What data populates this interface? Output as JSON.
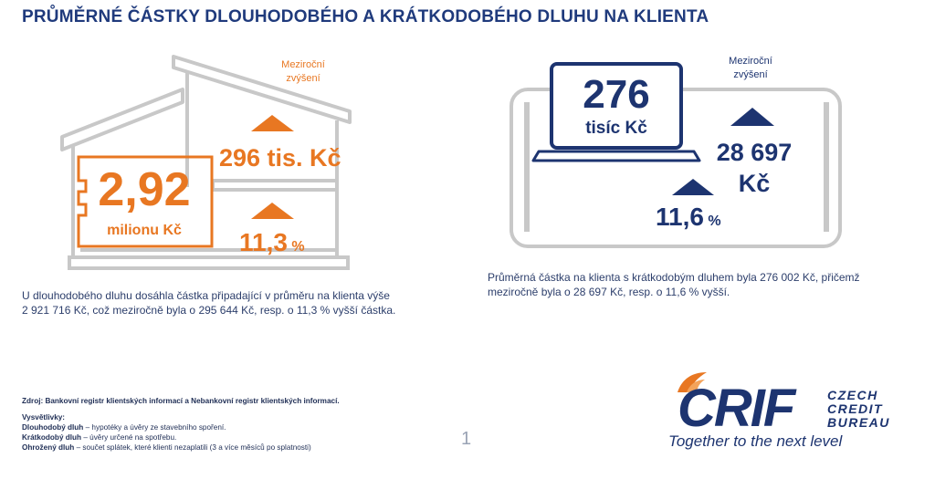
{
  "title": "PRŮMĚRNÉ ČÁSTKY DLOUHODOBÉHO A KRÁTKODOBÉHO DLUHU NA KLIENTA",
  "left": {
    "annual_label_line1": "Meziroční",
    "annual_label_line2": "zvýšení",
    "main_value": "2,92",
    "main_unit": "milionu Kč",
    "increase_value": "296 tis. Kč",
    "increase_pct_value": "11,3",
    "increase_pct_unit": "%",
    "text_line1": "U dlouhodobého dluhu dosáhla částka připadající v průměru na klienta výše",
    "text_line2": "2 921 716 Kč, což meziročně byla o 295 644 Kč, resp. o 11,3 % vyšší částka."
  },
  "right": {
    "annual_label_line1": "Meziroční",
    "annual_label_line2": "zvýšení",
    "main_value": "276",
    "main_unit": "tisíc Kč",
    "increase_value_line1": "28 697",
    "increase_value_line2": "Kč",
    "increase_pct_value": "11,6",
    "increase_pct_unit": "%",
    "text_line1": "Průměrná částka na klienta s krátkodobým dluhem byla 276 002 Kč, přičemž",
    "text_line2": "meziročně byla o 28 697 Kč, resp. o 11,6 % vyšší."
  },
  "footer": {
    "source": "Zdroj: Bankovní registr klientských informací a Nebankovní registr klientských informací.",
    "legend_title": "Vysvětlivky:",
    "def1_term": "Dlouhodobý dluh",
    "def1_text": " – hypotéky a úvěry ze stavebního spoření.",
    "def2_term": "Krátkodobý dluh",
    "def2_text": " – úvěry určené na spotřebu.",
    "def3_term": "Ohrožený dluh",
    "def3_text": " – součet splátek, které klienti nezaplatili (3 a více měsíců po splatnosti)",
    "page_number": "1"
  },
  "logo": {
    "brand": "CRIF",
    "line1": "CZECH",
    "line2": "CREDIT",
    "line3": "BUREAU",
    "tagline": "Together to the next level"
  },
  "colors": {
    "orange": "#e87722",
    "navy": "#1d3470",
    "outline": "#c8c8c8"
  }
}
